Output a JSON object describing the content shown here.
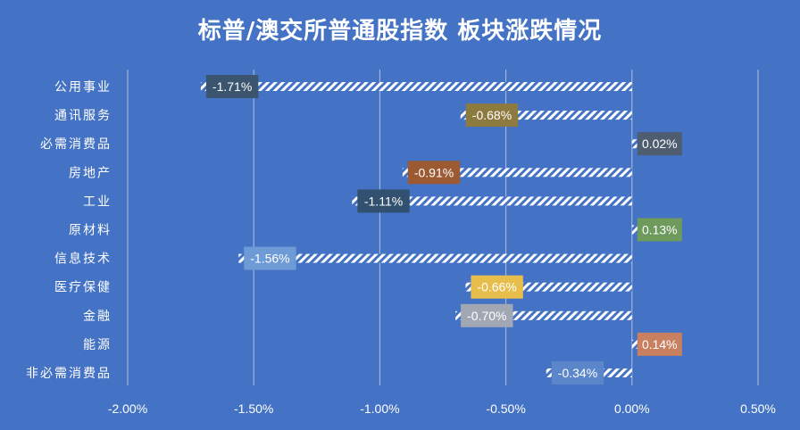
{
  "chart_data": {
    "type": "bar",
    "orientation": "horizontal",
    "title": "标普/澳交所普通股指数 板块涨跌情况",
    "categories": [
      "公用事业",
      "通讯服务",
      "必需消费品",
      "房地产",
      "工业",
      "原材料",
      "信息技术",
      "医疗保健",
      "金融",
      "能源",
      "非必需消费品"
    ],
    "values": [
      -1.71,
      -0.68,
      0.02,
      -0.91,
      -1.11,
      0.13,
      -1.56,
      -0.66,
      -0.7,
      0.14,
      -0.34
    ],
    "value_labels": [
      "-1.71%",
      "-0.68%",
      "0.02%",
      "-0.91%",
      "-1.11%",
      "0.13%",
      "-1.56%",
      "-0.66%",
      "-0.70%",
      "0.14%",
      "-0.34%"
    ],
    "label_colors": [
      "#3B556E",
      "#8D7A3E",
      "#4F5D70",
      "#9C5A33",
      "#32506F",
      "#6E9A5C",
      "#6E9BD6",
      "#E7BE4C",
      "#A2A8B3",
      "#C98060",
      "#5B86C9"
    ],
    "xlim": [
      -2.0,
      0.5
    ],
    "x_ticks": [
      -2.0,
      -1.5,
      -1.0,
      -0.5,
      0.0,
      0.5
    ],
    "x_tick_labels": [
      "-2.00%",
      "-1.50%",
      "-1.00%",
      "-0.50%",
      "0.00%",
      "0.50%"
    ],
    "grid": true,
    "bar_fill": "white diagonal hatch",
    "background": "#4472C4",
    "legend": "none"
  }
}
